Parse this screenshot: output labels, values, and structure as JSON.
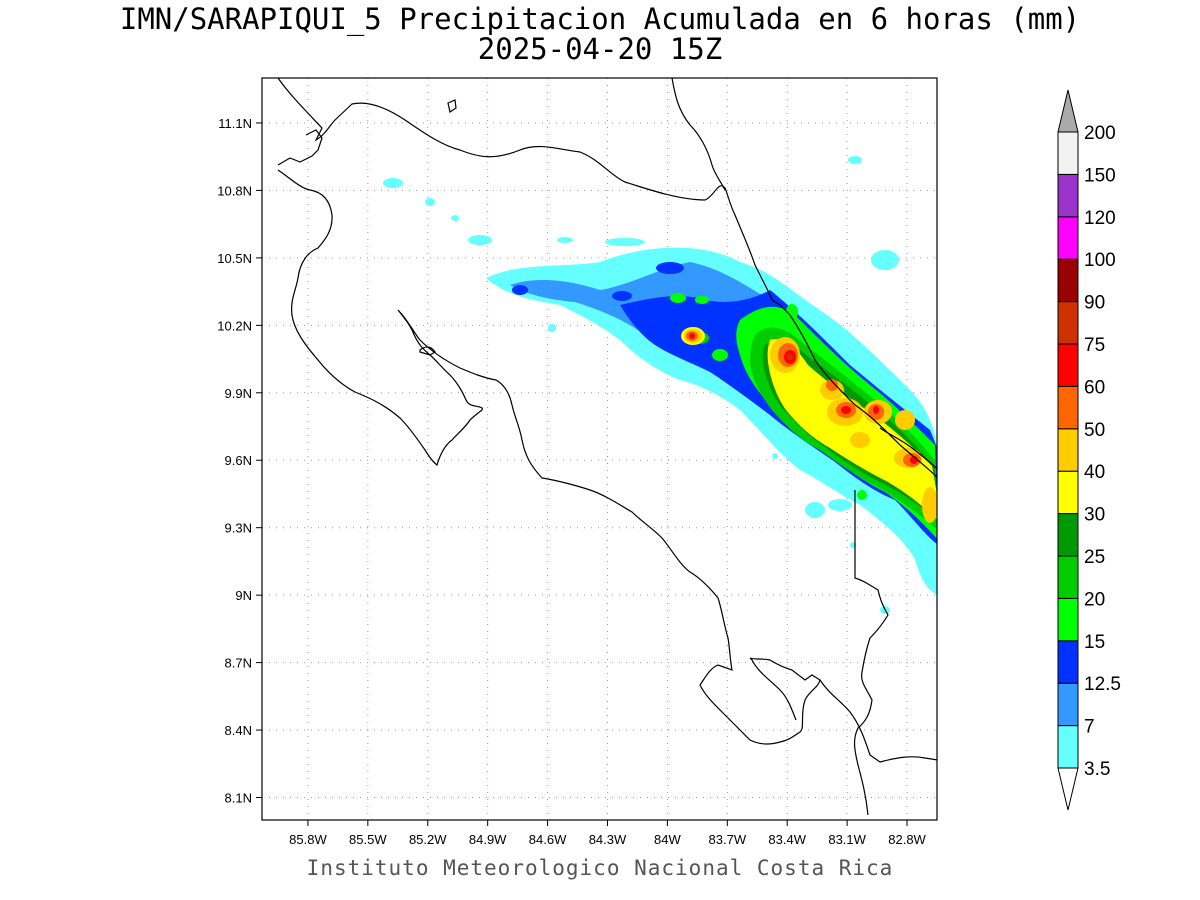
{
  "title": {
    "line1": "IMN/SARAPIQUI_5 Precipitacion Acumulada en 6 horas (mm)",
    "line2": "2025-04-20 15Z"
  },
  "credit": "Instituto Meteorologico Nacional Costa Rica",
  "map": {
    "lon_range": [
      -86.03,
      -82.65
    ],
    "lat_range": [
      8.0,
      11.3
    ],
    "lat_ticks": [
      {
        "value": 11.1,
        "label": "11.1N"
      },
      {
        "value": 10.8,
        "label": "10.8N"
      },
      {
        "value": 10.5,
        "label": "10.5N"
      },
      {
        "value": 10.2,
        "label": "10.2N"
      },
      {
        "value": 9.9,
        "label": "9.9N"
      },
      {
        "value": 9.6,
        "label": "9.6N"
      },
      {
        "value": 9.3,
        "label": "9.3N"
      },
      {
        "value": 9.0,
        "label": "9N"
      },
      {
        "value": 8.7,
        "label": "8.7N"
      },
      {
        "value": 8.4,
        "label": "8.4N"
      },
      {
        "value": 8.1,
        "label": "8.1N"
      }
    ],
    "lon_ticks": [
      {
        "value": -85.8,
        "label": "85.8W"
      },
      {
        "value": -85.5,
        "label": "85.5W"
      },
      {
        "value": -85.2,
        "label": "85.2W"
      },
      {
        "value": -84.9,
        "label": "84.9W"
      },
      {
        "value": -84.6,
        "label": "84.6W"
      },
      {
        "value": -84.3,
        "label": "84.3W"
      },
      {
        "value": -84.0,
        "label": "84W"
      },
      {
        "value": -83.7,
        "label": "83.7W"
      },
      {
        "value": -83.4,
        "label": "83.4W"
      },
      {
        "value": -83.1,
        "label": "83.1W"
      },
      {
        "value": -82.8,
        "label": "82.8W"
      }
    ],
    "grid": true
  },
  "colorbar": {
    "units": "mm",
    "levels": [
      {
        "label": "3.5",
        "color": "#66ffff"
      },
      {
        "label": "7",
        "color": "#3399ff"
      },
      {
        "label": "12.5",
        "color": "#0033ff"
      },
      {
        "label": "15",
        "color": "#00ff00"
      },
      {
        "label": "20",
        "color": "#00cc00"
      },
      {
        "label": "25",
        "color": "#009900"
      },
      {
        "label": "30",
        "color": "#ffff00"
      },
      {
        "label": "40",
        "color": "#ffcc00"
      },
      {
        "label": "50",
        "color": "#ff6600"
      },
      {
        "label": "60",
        "color": "#ff0000"
      },
      {
        "label": "75",
        "color": "#cc3300"
      },
      {
        "label": "90",
        "color": "#990000"
      },
      {
        "label": "100",
        "color": "#ff00ff"
      },
      {
        "label": "120",
        "color": "#9933cc"
      },
      {
        "label": "150",
        "color": "#f2f2f2"
      },
      {
        "label": "200",
        "color": "#aaaaaa"
      }
    ],
    "below_min_color": "#ffffff"
  }
}
